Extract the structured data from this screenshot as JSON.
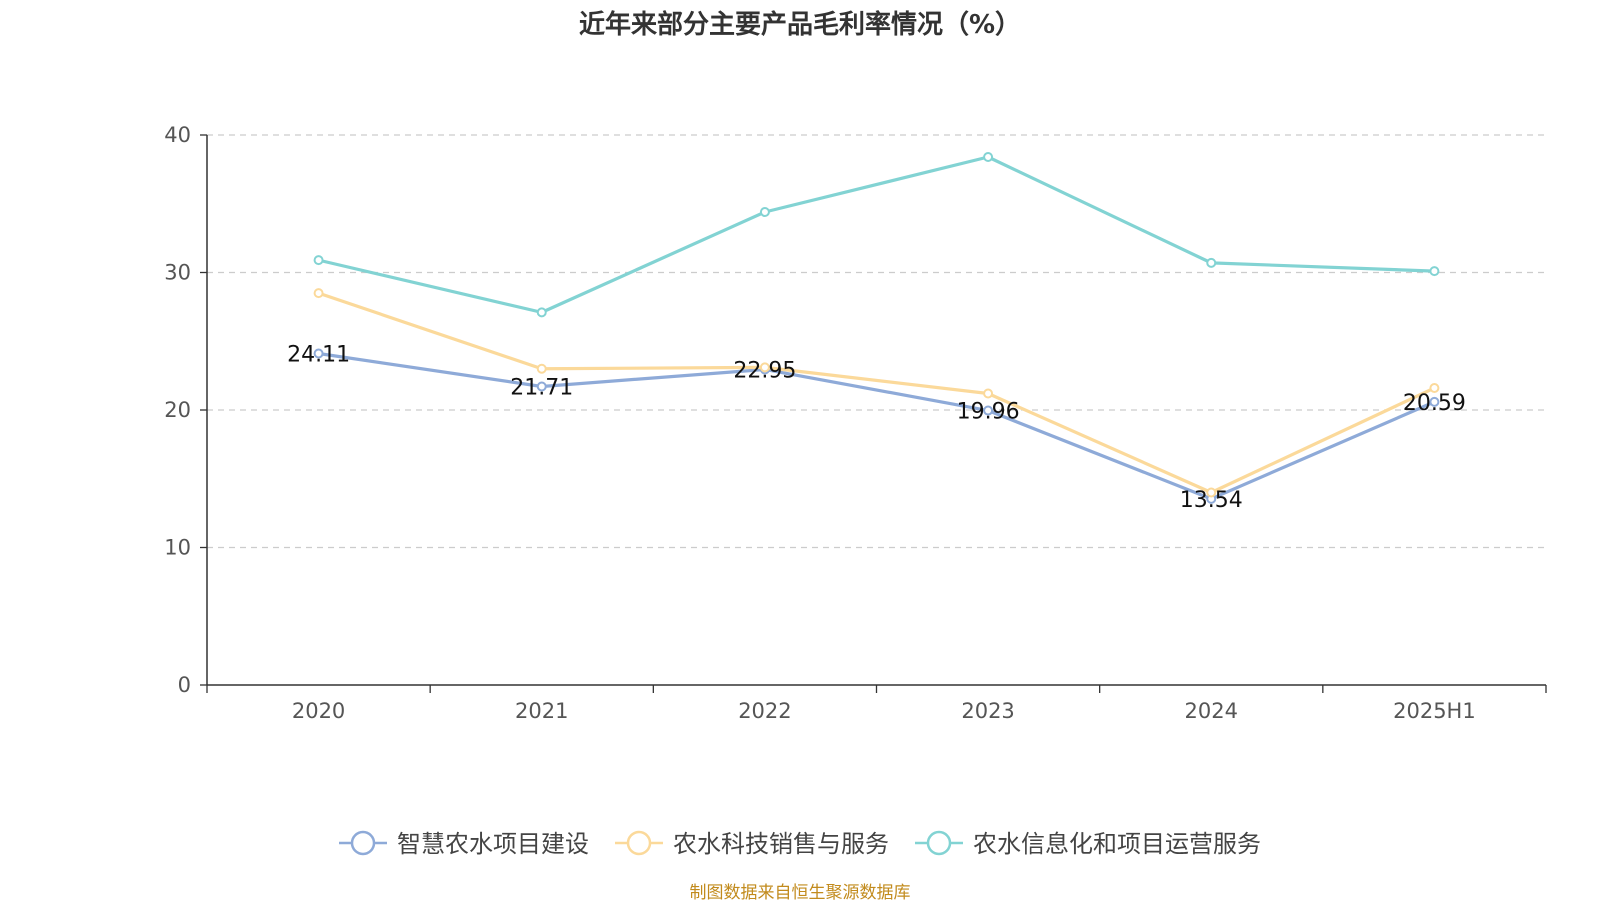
{
  "footer": "制图数据来自恒生聚源数据库",
  "chart_data": {
    "type": "line",
    "title": "近年来部分主要产品毛利率情况（%）",
    "xlabel": "",
    "ylabel": "",
    "categories": [
      "2020",
      "2021",
      "2022",
      "2023",
      "2024",
      "2025H1"
    ],
    "ylim": [
      0,
      40
    ],
    "yticks": [
      0,
      10,
      20,
      30,
      40
    ],
    "grid": true,
    "legend_position": "bottom",
    "series": [
      {
        "name": "智慧农水项目建设",
        "color": "#8eaad8",
        "values": [
          24.11,
          21.71,
          22.95,
          19.96,
          13.54,
          20.59
        ],
        "show_labels": true
      },
      {
        "name": "农水科技销售与服务",
        "color": "#fbd99a",
        "values": [
          28.5,
          23.0,
          23.1,
          21.2,
          14.0,
          21.6
        ],
        "show_labels": false
      },
      {
        "name": "农水信息化和项目运营服务",
        "color": "#82d3d3",
        "values": [
          30.9,
          27.1,
          34.4,
          38.4,
          30.7,
          30.1
        ],
        "show_labels": false
      }
    ]
  }
}
